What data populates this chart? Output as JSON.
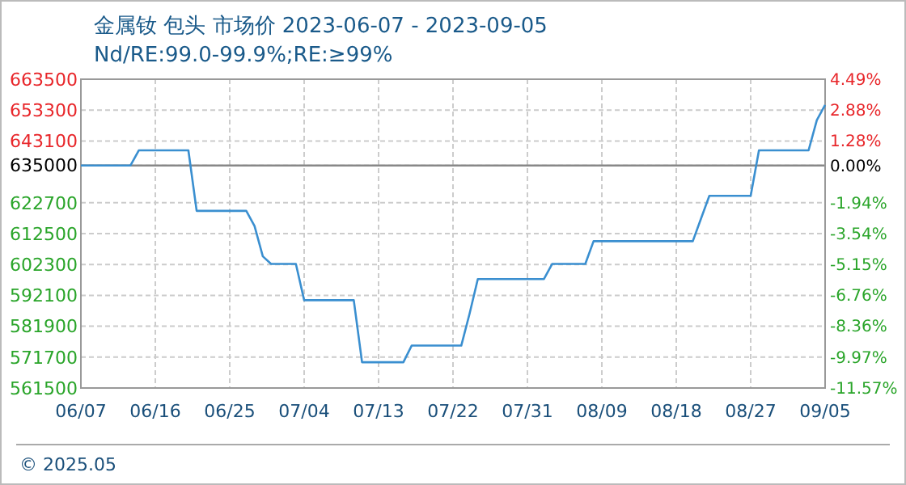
{
  "chart_data": {
    "type": "line",
    "title": "金属钕 包头 市场价 2023-06-07 - 2023-09-05",
    "subtitle": "Nd/RE:99.0-99.9%;RE:≥99%",
    "x": [
      "2023-06-07",
      "2023-06-13",
      "2023-06-14",
      "2023-06-20",
      "2023-06-21",
      "2023-06-27",
      "2023-06-28",
      "2023-06-29",
      "2023-06-30",
      "2023-07-03",
      "2023-07-04",
      "2023-07-10",
      "2023-07-11",
      "2023-07-16",
      "2023-07-17",
      "2023-07-23",
      "2023-07-24",
      "2023-07-25",
      "2023-08-02",
      "2023-08-03",
      "2023-08-07",
      "2023-08-08",
      "2023-08-20",
      "2023-08-21",
      "2023-08-22",
      "2023-08-27",
      "2023-08-28",
      "2023-09-03",
      "2023-09-04",
      "2023-09-05"
    ],
    "series": [
      {
        "color": "#3a8fd0",
        "values": [
          635000,
          635000,
          640000,
          640000,
          620000,
          620000,
          615000,
          605000,
          602500,
          602500,
          590500,
          590500,
          570000,
          570000,
          575500,
          575500,
          586000,
          597500,
          597500,
          602500,
          602500,
          610000,
          610000,
          617500,
          625000,
          625000,
          640000,
          640000,
          650000,
          655000
        ]
      }
    ],
    "xlim": [
      "2023-06-07",
      "2023-09-05"
    ],
    "xticks": [
      {
        "value": "2023-06-07",
        "label": "06/07"
      },
      {
        "value": "2023-06-16",
        "label": "06/16"
      },
      {
        "value": "2023-06-25",
        "label": "06/25"
      },
      {
        "value": "2023-07-04",
        "label": "07/04"
      },
      {
        "value": "2023-07-13",
        "label": "07/13"
      },
      {
        "value": "2023-07-22",
        "label": "07/22"
      },
      {
        "value": "2023-07-31",
        "label": "07/31"
      },
      {
        "value": "2023-08-09",
        "label": "08/09"
      },
      {
        "value": "2023-08-18",
        "label": "08/18"
      },
      {
        "value": "2023-08-27",
        "label": "08/27"
      },
      {
        "value": "2023-09-05",
        "label": "09/05"
      }
    ],
    "ylim": [
      561500,
      663500
    ],
    "yticks": [
      561500,
      571700,
      581900,
      592100,
      602300,
      612500,
      622700,
      635000,
      643100,
      653300,
      663500
    ],
    "y2lim": [
      -11.58,
      4.49
    ],
    "y2ticks": [
      {
        "value": -11.57,
        "label": "-11.57%"
      },
      {
        "value": -9.97,
        "label": "-9.97%"
      },
      {
        "value": -8.36,
        "label": "-8.36%"
      },
      {
        "value": -6.76,
        "label": "-6.76%"
      },
      {
        "value": -5.15,
        "label": "-5.15%"
      },
      {
        "value": -3.54,
        "label": "-3.54%"
      },
      {
        "value": -1.94,
        "label": "-1.94%"
      },
      {
        "value": 0,
        "label": "0.00%"
      },
      {
        "value": 1.28,
        "label": "1.28%"
      },
      {
        "value": 2.88,
        "label": "2.88%"
      },
      {
        "value": 4.49,
        "label": "4.49%"
      }
    ],
    "ref_lines": [
      {
        "axis": "y",
        "value": 635000,
        "color": "#888888"
      }
    ],
    "grid": true,
    "annotations": [
      "© 2025.05"
    ]
  }
}
